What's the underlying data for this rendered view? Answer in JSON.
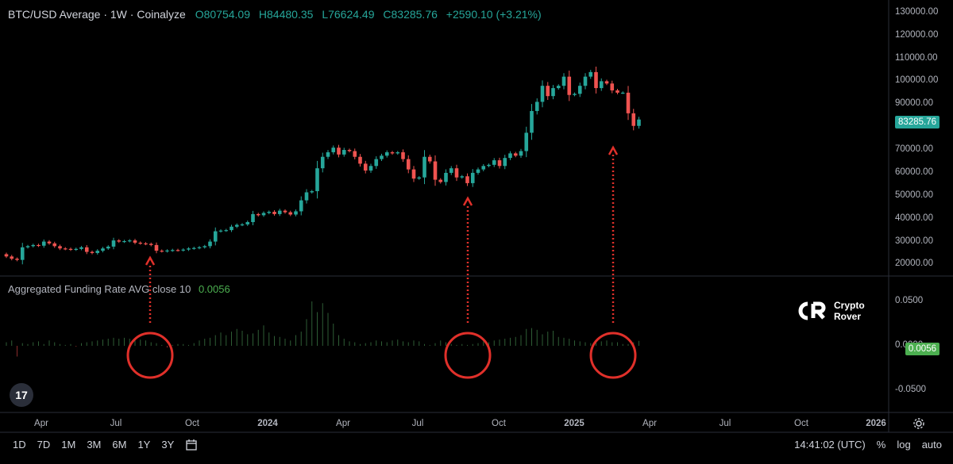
{
  "header": {
    "symbol": "BTC/USD Average · 1W · Coinalyze",
    "open": "O80754.09",
    "high": "H84480.35",
    "low": "L76624.49",
    "close": "C83285.76",
    "change": "+2590.10 (+3.21%)"
  },
  "indicator": {
    "title": "Aggregated Funding Rate AVG close 10",
    "value": "0.0056"
  },
  "price_badge": "83285.76",
  "funding_badge": "0.0056",
  "colors": {
    "up": "#26a69a",
    "down": "#ef5350",
    "funding": "#4caf50",
    "annotation": "#e0302a"
  },
  "toolbar": {
    "timeframes": [
      "1D",
      "7D",
      "1M",
      "3M",
      "6M",
      "1Y",
      "3Y"
    ],
    "time": "14:41:02 (UTC)",
    "percent": "%",
    "log": "log",
    "auto": "auto"
  },
  "logo": {
    "line1": "Crypto",
    "line2": "Rover"
  },
  "chart_data": [
    {
      "type": "candlestick",
      "title": "BTC/USD Average · 1W · Coinalyze",
      "y_ticks": [
        20000,
        30000,
        40000,
        50000,
        60000,
        70000,
        80000,
        90000,
        100000,
        110000,
        120000,
        130000
      ],
      "y_tick_labels": [
        "20000.00",
        "30000.00",
        "40000.00",
        "50000.00",
        "60000.00",
        "70000.00",
        "80000.00",
        "90000.00",
        "100000.00",
        "110000.00",
        "120000.00",
        "130000.00"
      ],
      "ylim": [
        16000,
        132000
      ],
      "x_ticks": [
        "Apr",
        "Jul",
        "Oct",
        "2024",
        "Apr",
        "Jul",
        "Oct",
        "2025",
        "Apr",
        "Jul",
        "Oct",
        "2026"
      ],
      "series": [
        {
          "name": "BTC/USD",
          "weekly_close": [
            23500,
            22500,
            22000,
            27500,
            28000,
            28500,
            28200,
            30000,
            29200,
            28000,
            27000,
            26800,
            26500,
            26800,
            27500,
            25500,
            25000,
            26000,
            27000,
            27800,
            30500,
            30000,
            30200,
            30500,
            29500,
            29200,
            29000,
            28500,
            26000,
            25800,
            26100,
            26300,
            26200,
            26500,
            27000,
            27200,
            27500,
            28000,
            30000,
            34500,
            34800,
            35000,
            36500,
            37300,
            37500,
            38500,
            42000,
            41500,
            42500,
            43000,
            42000,
            43500,
            42800,
            41800,
            43200,
            48000,
            51500,
            52000,
            62000,
            67000,
            69000,
            71000,
            68000,
            70000,
            69500,
            67000,
            64000,
            61000,
            63000,
            66000,
            67500,
            69000,
            68500,
            69000,
            66000,
            61500,
            57500,
            58000,
            67000,
            65000,
            57000,
            56000,
            60000,
            62000,
            58000,
            58500,
            55500,
            60000,
            61500,
            63000,
            63500,
            65500,
            63000,
            66500,
            68500,
            67500,
            69500,
            77500,
            87000,
            91000,
            98000,
            93500,
            97000,
            98000,
            102000,
            94000,
            94500,
            98000,
            102000,
            104000,
            97000,
            100000,
            99000,
            96000,
            95000,
            95000,
            86000,
            80500,
            83286
          ]
        }
      ]
    },
    {
      "type": "bar",
      "title": "Aggregated Funding Rate AVG close 10",
      "y_ticks": [
        0.05,
        0.0,
        -0.05
      ],
      "y_tick_labels": [
        "0.0500",
        "0.0000",
        "-0.0500"
      ],
      "ylim": [
        -0.075,
        0.075
      ],
      "series": [
        {
          "name": "Funding Rate",
          "values": [
            0.004,
            0.006,
            -0.012,
            0.003,
            0.002,
            0.004,
            0.005,
            0.002,
            0.006,
            0.004,
            0.002,
            0.001,
            0.002,
            -0.001,
            0.003,
            0.004,
            0.005,
            0.006,
            0.007,
            0.008,
            0.009,
            0.008,
            0.009,
            0.008,
            0.006,
            0.007,
            0.006,
            0.004,
            0.003,
            0.001,
            -0.002,
            0.001,
            0.002,
            0.002,
            0.001,
            0.003,
            0.006,
            0.008,
            0.009,
            0.012,
            0.015,
            0.012,
            0.016,
            0.019,
            0.017,
            0.013,
            0.014,
            0.018,
            0.023,
            0.015,
            0.011,
            0.01,
            0.008,
            0.006,
            0.012,
            0.016,
            0.03,
            0.05,
            0.038,
            0.048,
            0.037,
            0.025,
            0.012,
            0.008,
            0.005,
            0.004,
            0.002,
            0.003,
            0.004,
            0.006,
            0.005,
            0.004,
            0.006,
            0.007,
            0.005,
            0.004,
            0.006,
            0.005,
            0.002,
            0.001,
            0.003,
            0.006,
            0.004,
            0.002,
            0.001,
            0.002,
            0.001,
            0.002,
            0.003,
            0.005,
            0.004,
            0.006,
            0.007,
            0.008,
            0.009,
            0.01,
            0.012,
            0.019,
            0.02,
            0.018,
            0.013,
            0.016,
            0.017,
            0.01,
            0.009,
            0.008,
            0.006,
            0.005,
            0.004,
            0.003,
            0.006,
            0.005,
            0.006,
            0.004,
            0.004,
            0.002,
            0.002,
            0.004,
            0.0056
          ]
        }
      ]
    }
  ]
}
